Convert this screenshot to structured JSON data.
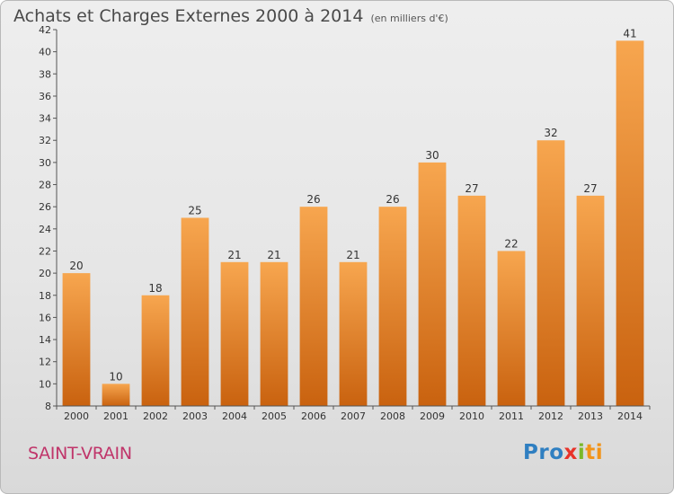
{
  "header": {
    "title": "Achats et Charges Externes 2000 à 2014",
    "unit": "(en milliers d'€)"
  },
  "footer": {
    "commune": "SAINT-VRAIN",
    "logo": [
      "Pro",
      "x",
      "i",
      "ti"
    ]
  },
  "colors": {
    "bar_light": "#f7a64f",
    "bar_dark": "#c9620f",
    "commune": "#c0356a"
  },
  "chart_data": {
    "type": "bar",
    "title": "Achats et Charges Externes 2000 à 2014",
    "subtitle": "(en milliers d'€)",
    "xlabel": "",
    "ylabel": "",
    "categories": [
      "2000",
      "2001",
      "2002",
      "2003",
      "2004",
      "2005",
      "2006",
      "2007",
      "2008",
      "2009",
      "2010",
      "2011",
      "2012",
      "2013",
      "2014"
    ],
    "values": [
      20,
      10,
      18,
      25,
      21,
      21,
      26,
      21,
      26,
      30,
      27,
      22,
      32,
      27,
      41
    ],
    "ylim": [
      8,
      42
    ],
    "yticks": [
      8,
      10,
      12,
      14,
      16,
      18,
      20,
      22,
      24,
      26,
      28,
      30,
      32,
      34,
      36,
      38,
      40,
      42
    ],
    "grid": false,
    "legend": "none"
  }
}
